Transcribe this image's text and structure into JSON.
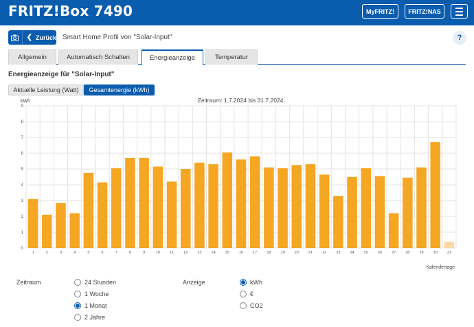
{
  "header": {
    "brand": "FRITZ!Box 7490",
    "myfritz": "MyFRITZ!",
    "nas": "FRITZ!NAS",
    "menu_icon": "hamburger-icon"
  },
  "toolbar": {
    "back_label": "Zurück",
    "camera_icon": "camera-icon",
    "back_icon": "chevron-left-icon",
    "title": "Smart Home Profil von \"Solar-Input\"",
    "help": "?"
  },
  "tabs": [
    {
      "label": "Allgemein"
    },
    {
      "label": "Automatisch Schalten"
    },
    {
      "label": "Energieanzeige",
      "active": true
    },
    {
      "label": "Temperatur"
    }
  ],
  "section": {
    "title": "Energieanzeige für \"Solar-Input\"",
    "toggle_power": "Aktuelle Leistung (Watt)",
    "toggle_energy": "Gesamtenergie (kWh)"
  },
  "colors": {
    "accent": "#0a5cae",
    "bar": "#f5a623",
    "bar_future": "#fbd9a6"
  },
  "chart_data": {
    "type": "bar",
    "title": "Zeitraum: 1.7.2024 bis 31.7.2024",
    "ylabel": "kWh",
    "xlabel": "Kalendertage",
    "ylim": [
      0,
      9
    ],
    "yticks": [
      0,
      1,
      2,
      3,
      4,
      5,
      6,
      7,
      8,
      9
    ],
    "grid": true,
    "categories": [
      "1",
      "2",
      "3",
      "4",
      "5",
      "6",
      "7",
      "8",
      "9",
      "10",
      "11",
      "12",
      "13",
      "14",
      "15",
      "16",
      "17",
      "18",
      "19",
      "20",
      "21",
      "22",
      "23",
      "24",
      "25",
      "26",
      "27",
      "28",
      "29",
      "30",
      "31"
    ],
    "values": [
      3.1,
      2.1,
      2.85,
      2.2,
      4.75,
      4.15,
      5.05,
      5.7,
      5.7,
      5.15,
      4.2,
      5.0,
      5.4,
      5.3,
      6.05,
      5.6,
      5.8,
      5.1,
      5.05,
      5.25,
      5.3,
      4.65,
      3.3,
      4.5,
      5.05,
      4.55,
      2.2,
      4.45,
      5.1,
      6.7,
      0.4
    ]
  },
  "options": {
    "zeitraum_label": "Zeitraum",
    "zeitraum": [
      "24 Stunden",
      "1 Woche",
      "1 Monat",
      "2 Jahre"
    ],
    "zeitraum_selected": "1 Monat",
    "anzeige_label": "Anzeige",
    "anzeige": [
      "kWh",
      "€",
      "CO2"
    ],
    "anzeige_selected": "kWh"
  }
}
